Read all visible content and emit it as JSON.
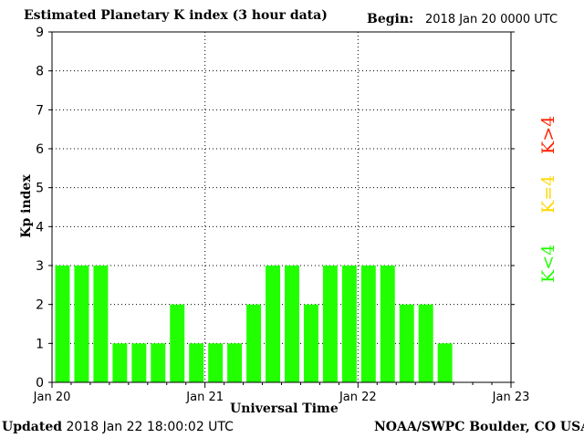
{
  "header": {
    "title": "Estimated Planetary K index (3 hour data)",
    "begin_label": "Begin:",
    "begin_value": "2018 Jan 20 0000 UTC"
  },
  "footer": {
    "updated_label": "Updated",
    "updated_value": "2018 Jan 22 18:00:02 UTC",
    "source": "NOAA/SWPC Boulder, CO USA"
  },
  "legend": [
    {
      "label": "K>4",
      "color": "#ff2000"
    },
    {
      "label": "K=4",
      "color": "#ffd700"
    },
    {
      "label": "K<4",
      "color": "#22ff00"
    }
  ],
  "chart_data": {
    "type": "bar",
    "title": "Estimated Planetary K index (3 hour data)",
    "xlabel": "Universal Time",
    "ylabel": "Kp index",
    "ylim": [
      0,
      9
    ],
    "y_ticks": [
      0,
      1,
      2,
      3,
      4,
      5,
      6,
      7,
      8,
      9
    ],
    "x_tick_labels": [
      "Jan 20",
      "Jan 21",
      "Jan 22",
      "Jan 23"
    ],
    "grid": true,
    "bar_color": "#22ff00",
    "categories": [
      "Jan 20 00",
      "Jan 20 03",
      "Jan 20 06",
      "Jan 20 09",
      "Jan 20 12",
      "Jan 20 15",
      "Jan 20 18",
      "Jan 20 21",
      "Jan 21 00",
      "Jan 21 03",
      "Jan 21 06",
      "Jan 21 09",
      "Jan 21 12",
      "Jan 21 15",
      "Jan 21 18",
      "Jan 21 21",
      "Jan 22 00",
      "Jan 22 03",
      "Jan 22 06",
      "Jan 22 09",
      "Jan 22 12",
      "Jan 22 15"
    ],
    "values": [
      3,
      3,
      3,
      1,
      1,
      1,
      2,
      1,
      1,
      1,
      2,
      3,
      3,
      2,
      3,
      3,
      3,
      3,
      2,
      2,
      1,
      0
    ]
  }
}
